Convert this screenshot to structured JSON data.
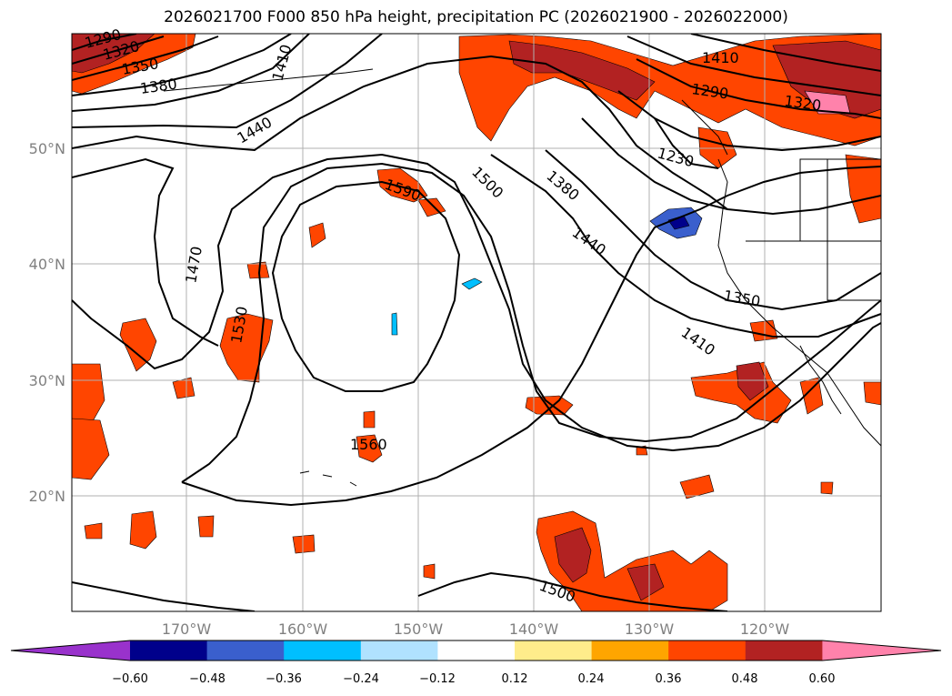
{
  "title": "2026021700 F000 850 hPa height, precipitation PC (2026021900 - 2026022000)",
  "map": {
    "lat_labels": [
      "50°N",
      "40°N",
      "30°N",
      "20°N"
    ],
    "lon_labels": [
      "170°W",
      "160°W",
      "150°W",
      "140°W",
      "130°W",
      "120°W"
    ],
    "contour_labels": [
      "1290",
      "1320",
      "1350",
      "1380",
      "1410",
      "1440",
      "1470",
      "1500",
      "1530",
      "1560",
      "1590",
      "1410",
      "1290",
      "1320",
      "1230",
      "1380",
      "1440",
      "1350",
      "1410",
      "1500"
    ],
    "contour_color": "#000000",
    "grid_color": "#b0b0b0"
  },
  "colorbar": {
    "colors": [
      "#9932cc",
      "#00008b",
      "#3a5fcd",
      "#00bfff",
      "#b0e2ff",
      "#ffffff",
      "#ffec8b",
      "#ffa500",
      "#ff4500",
      "#b22222",
      "#ff82ab"
    ],
    "tick_labels": [
      "−0.60",
      "−0.48",
      "−0.36",
      "−0.24",
      "−0.12",
      "0.12",
      "0.24",
      "0.36",
      "0.48",
      "0.60"
    ]
  }
}
